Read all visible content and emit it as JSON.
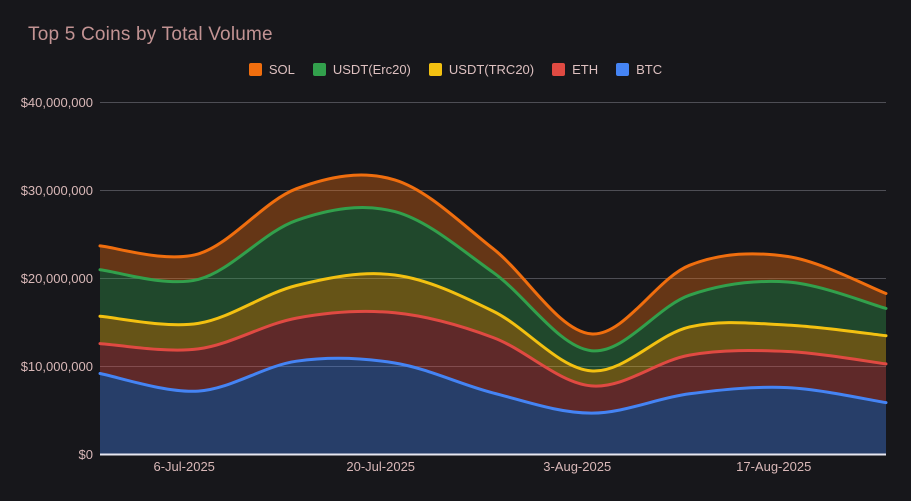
{
  "header": {
    "title": "Top 5 Coins by Total Volume"
  },
  "colors": {
    "background": "#17171b",
    "title_text": "#c29393",
    "axis_text": "#d9b8b8",
    "legend_text": "#ddc0c0",
    "gridline": "#4e4e55",
    "zero_line": "#e7e7f1"
  },
  "chart_data": {
    "type": "area",
    "stacked": true,
    "smooth": true,
    "title": "Top 5 Coins by Total Volume",
    "legend_position": "top-center",
    "grid": true,
    "x_dates": [
      "30-Jun-2025",
      "7-Jul-2025",
      "14-Jul-2025",
      "21-Jul-2025",
      "28-Jul-2025",
      "4-Aug-2025",
      "11-Aug-2025",
      "18-Aug-2025",
      "25-Aug-2025"
    ],
    "x_day_offsets": [
      0,
      7,
      14,
      21,
      28,
      35,
      42,
      49,
      56
    ],
    "x_axis_ticks": [
      {
        "label": "6-Jul-2025",
        "day_offset": 6
      },
      {
        "label": "20-Jul-2025",
        "day_offset": 20
      },
      {
        "label": "3-Aug-2025",
        "day_offset": 34
      },
      {
        "label": "17-Aug-2025",
        "day_offset": 48
      }
    ],
    "y_axis": {
      "max": 40000000,
      "ticks": [
        {
          "label": "$0",
          "value": 0
        },
        {
          "label": "$10,000,000",
          "value": 10000000
        },
        {
          "label": "$20,000,000",
          "value": 20000000
        },
        {
          "label": "$30,000,000",
          "value": 30000000
        },
        {
          "label": "$40,000,000",
          "value": 40000000
        }
      ]
    },
    "series": [
      {
        "name": "BTC",
        "color": "#4584f4",
        "values": [
          9200000,
          7200000,
          10600000,
          10400000,
          7000000,
          4700000,
          6900000,
          7600000,
          5900000
        ]
      },
      {
        "name": "ETH",
        "color": "#e04a42",
        "values": [
          3400000,
          4800000,
          4900000,
          5700000,
          6300000,
          3100000,
          4400000,
          4100000,
          4400000
        ]
      },
      {
        "name": "USDT(TRC20)",
        "color": "#f3c111",
        "values": [
          3100000,
          2900000,
          3700000,
          4300000,
          3000000,
          1700000,
          3200000,
          3000000,
          3200000
        ]
      },
      {
        "name": "USDT(Erc20)",
        "color": "#32a04c",
        "values": [
          5300000,
          5000000,
          7400000,
          7200000,
          4400000,
          2300000,
          3600000,
          4900000,
          3100000
        ]
      },
      {
        "name": "SOL",
        "color": "#f06e0e",
        "values": [
          2700000,
          2900000,
          3600000,
          3600000,
          2700000,
          1900000,
          3400000,
          2900000,
          1700000
        ]
      }
    ],
    "legend_order": [
      "SOL",
      "USDT(Erc20)",
      "USDT(TRC20)",
      "ETH",
      "BTC"
    ]
  }
}
